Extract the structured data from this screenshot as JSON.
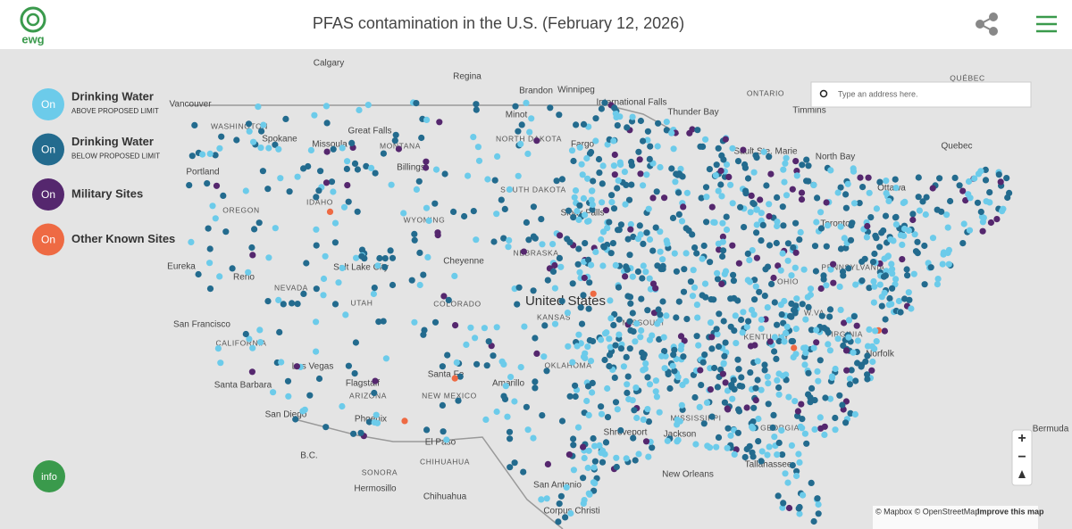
{
  "header": {
    "title": "PFAS contamination in the U.S. (February 12, 2026)",
    "logo": "ewg"
  },
  "legend": [
    {
      "toggle": "On",
      "label": "Drinking Water",
      "sublabel": "ABOVE PROPOSED LIMIT"
    },
    {
      "toggle": "On",
      "label": "Drinking Water",
      "sublabel": "BELOW PROPOSED LIMIT"
    },
    {
      "toggle": "On",
      "label": "Military Sites"
    },
    {
      "toggle": "On",
      "label": "Other Known Sites"
    }
  ],
  "search": {
    "placeholder": "Type an address here."
  },
  "info_button": "info",
  "zoom": {
    "in": "+",
    "out": "−"
  },
  "attribution": {
    "text": "© Mapbox © OpenStreetMap",
    "link": "Improve this map"
  },
  "map_labels": [
    "Calgary",
    "Regina",
    "Brandon",
    "Winnipeg",
    "International Falls",
    "Thunder Bay",
    "ONTARIO",
    "QUÉBEC",
    "Timmins",
    "Quebec",
    "Sault Ste. Marie",
    "North Bay",
    "Ottawa",
    "Toronto",
    "Bermuda",
    "Minot",
    "NORTH DAKOTA",
    "MONTANA",
    "Great Falls",
    "Missoula",
    "Spokane",
    "WASHINGTON",
    "Vancouver",
    "Portland",
    "OREGON",
    "IDAHO",
    "Billings",
    "WYOMING",
    "SOUTH DAKOTA",
    "Sioux Falls",
    "NEBRASKA",
    "Cheyenne",
    "Salt Lake City",
    "NEVADA",
    "UTAH",
    "Reno",
    "Eureka",
    "COLORADO",
    "KANSAS",
    "United States",
    "MISSOURI",
    "Las Vegas",
    "San Francisco",
    "CALIFORNIA",
    "Santa Barbara",
    "San Diego",
    "Flagstaff",
    "ARIZONA",
    "Phoenix",
    "Santa Fe",
    "NEW MEXICO",
    "Amarillo",
    "OKLAHOMA",
    "El Paso",
    "CHIHUAHUA",
    "Chihuahua",
    "SONORA",
    "Hermosillo",
    "B.C.",
    "San Antonio",
    "Corpus Christi",
    "Shreveport",
    "MISSISSIPPI",
    "Jackson",
    "New Orleans",
    "GEORGIA",
    "Tallahassee",
    "VIRGINIA",
    "Norfolk",
    "W.VA.",
    "KENTUCKY",
    "OHIO",
    "PENNSYLVANIA",
    "Fargo"
  ]
}
